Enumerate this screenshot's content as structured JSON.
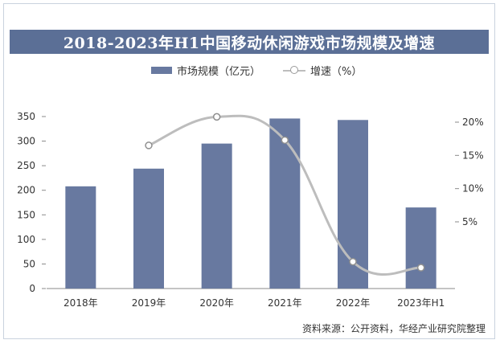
{
  "chart_data": {
    "type": "bar",
    "title": "2018-2023年H1中国移动休闲游戏市场规模及增速",
    "categories": [
      "2018年",
      "2019年",
      "2020年",
      "2021年",
      "2022年",
      "2023年H1"
    ],
    "series": [
      {
        "name": "市场规模（亿元）",
        "type": "bar",
        "axis": "left",
        "color": "#6879a0",
        "values": [
          208,
          244,
          295,
          346,
          343,
          165
        ]
      },
      {
        "name": "增速（%）",
        "type": "line",
        "axis": "right",
        "color": "#bdbdbd",
        "values": [
          null,
          16.5,
          20.8,
          17.3,
          -1.0,
          -1.9
        ]
      }
    ],
    "ylim_left": [
      0,
      350
    ],
    "yticks_left": [
      "0",
      "50",
      "100",
      "150",
      "200",
      "250",
      "300",
      "350"
    ],
    "yticks_right": [
      "5%",
      "10%",
      "15%",
      "20%"
    ],
    "grid": false,
    "legend_position": "top-center"
  },
  "source": "资料来源：公开资料，华经产业研究院整理"
}
